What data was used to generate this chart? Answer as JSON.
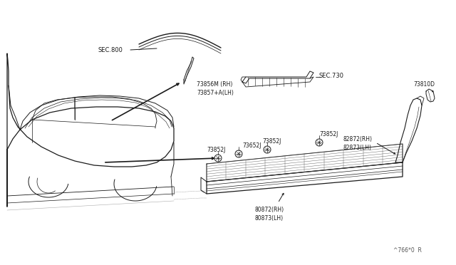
{
  "bg_color": "#ffffff",
  "line_color": "#1a1a1a",
  "text_color": "#1a1a1a",
  "fig_width": 6.4,
  "fig_height": 3.72,
  "dpi": 100,
  "watermark": "^766*0  R",
  "sec800_label": "SEC.800",
  "sec730_label": "SEC.730",
  "label_73856M": "73856M (RH)",
  "label_73857A": "73857+A(LH)",
  "label_73852J": "73852J",
  "label_73652J": "73652J",
  "label_73810D": "73810D",
  "label_82872": "82872(RH)",
  "label_82873": "82873(LH)",
  "label_80872": "80872(RH)",
  "label_80873": "80873(LH)"
}
